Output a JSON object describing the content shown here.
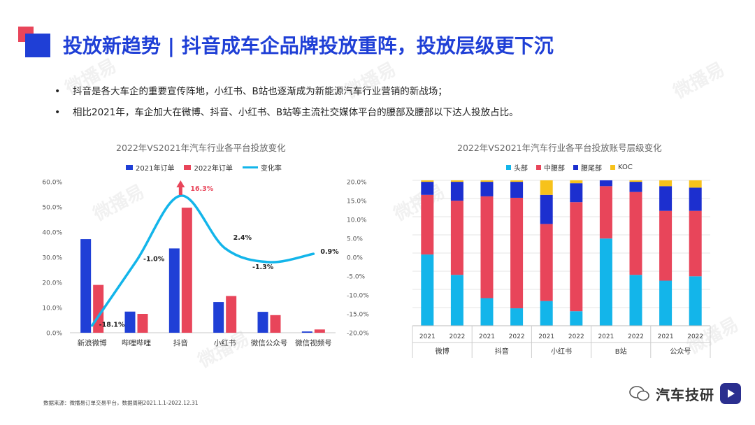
{
  "page": {
    "title": "投放新趋势 | 抖音成车企品牌投放重阵，投放层级更下沉",
    "bullets": [
      "抖音是各大车企的重要宣传阵地，小红书、B站也逐渐成为新能源汽车行业营销的新战场；",
      "相比2021年，车企加大在微博、抖音、小红书、B站等主流社交媒体平台的腰部及腰部以下达人投放占比。"
    ],
    "bullet_marker": "•",
    "source": "数据来源：微播易订单交易平台，数据周期2021.1.1-2022.12.31",
    "brand": "汽车技研",
    "watermark": "微播易",
    "colors": {
      "blue": "#1f3fd6",
      "red": "#e8455a",
      "cyan": "#13b5ea",
      "navy": "#1c2fcf",
      "yellow": "#f7c21b"
    }
  },
  "chart_data": [
    {
      "type": "bar",
      "title": "2022年VS2021年汽车行业各平台投放变化",
      "categories": [
        "新浪微博",
        "哔哩哔哩",
        "抖音",
        "小红书",
        "微信公众号",
        "微信视频号"
      ],
      "series": [
        {
          "name": "2021年订单",
          "color": "#1f3fd6",
          "values": [
            37.2,
            8.4,
            33.5,
            12.2,
            8.3,
            0.5
          ]
        },
        {
          "name": "2022年订单",
          "color": "#e8455a",
          "values": [
            19.0,
            7.5,
            49.7,
            14.6,
            7.0,
            1.3
          ]
        }
      ],
      "line_series": {
        "name": "变化率",
        "color": "#13b5ea",
        "values": [
          -18.1,
          -1.0,
          16.3,
          2.4,
          -1.3,
          0.9
        ]
      },
      "data_labels": [
        "-18.1%",
        "-1.0%",
        "16.3%",
        "2.4%",
        "-1.3%",
        "0.9%"
      ],
      "yticks": [
        "0.0%",
        "10.0%",
        "20.0%",
        "30.0%",
        "40.0%",
        "50.0%",
        "60.0%"
      ],
      "y2ticks": [
        "-20.0%",
        "-15.0%",
        "-10.0%",
        "-5.0%",
        "0.0%",
        "5.0%",
        "10.0%",
        "15.0%",
        "20.0%"
      ],
      "ylim": [
        0,
        60
      ],
      "y2lim": [
        -20,
        20
      ],
      "legend": "top"
    },
    {
      "type": "bar",
      "stacked": true,
      "title": "2022年VS2021年汽车行业各平台投放账号层级变化",
      "groups": [
        "微博",
        "抖音",
        "小红书",
        "B站",
        "公众号"
      ],
      "years": [
        "2021",
        "2022"
      ],
      "series": [
        {
          "name": "头部",
          "color": "#13b5ea",
          "values": [
            49,
            35,
            19,
            12,
            17,
            10,
            60,
            35,
            31,
            34
          ]
        },
        {
          "name": "中腰部",
          "color": "#e8455a",
          "values": [
            41,
            51,
            70,
            76,
            53,
            75,
            36,
            57,
            48,
            45
          ]
        },
        {
          "name": "腰尾部",
          "color": "#1c2fcf",
          "values": [
            9,
            13,
            10,
            11,
            20,
            13,
            4,
            7,
            17,
            16
          ]
        },
        {
          "name": "KOC",
          "color": "#f7c21b",
          "values": [
            1,
            1,
            1,
            1,
            10,
            2,
            0,
            1,
            4,
            5
          ]
        }
      ],
      "ylim": [
        0,
        100
      ],
      "legend": "top"
    }
  ]
}
